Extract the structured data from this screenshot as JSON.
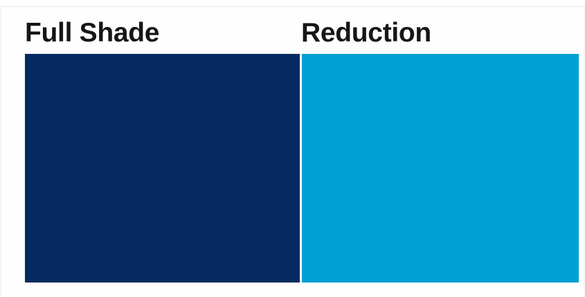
{
  "page": {
    "background": "#fefefe",
    "divider_color": "#e8e8e8"
  },
  "swatch_panel": {
    "items": [
      {
        "label": "Full Shade",
        "color": "#052a5f"
      },
      {
        "label": "Reduction",
        "color": "#00a0d2"
      }
    ],
    "label_text_color": "#161616"
  }
}
